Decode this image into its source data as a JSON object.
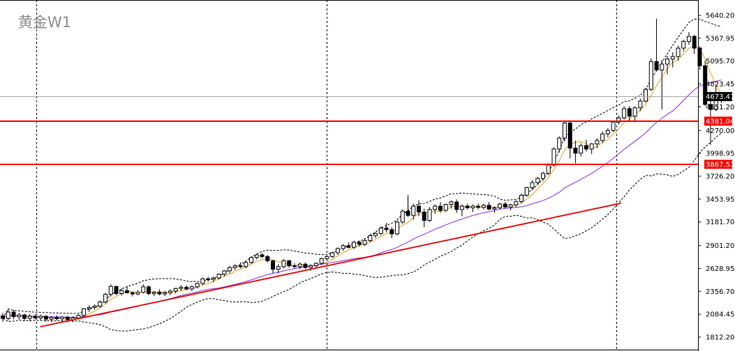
{
  "chart_data": {
    "type": "candlestick",
    "title": "黄金W1",
    "timeframe": "W1",
    "ylim": [
      1790,
      5770
    ],
    "y_ticks": [
      5640.2,
      5367.95,
      5095.7,
      4823.45,
      4551.2,
      4270.0,
      3998.95,
      3726.2,
      3453.95,
      3181.7,
      2901.2,
      2628.95,
      2356.7,
      2084.45,
      1812.2
    ],
    "current_price": {
      "label": "4673.47",
      "value": 4673.47,
      "color": "#000000",
      "text_color": "#ffffff"
    },
    "levels": [
      {
        "label": "4381.04",
        "value": 4381.04,
        "color": "#ff0000"
      },
      {
        "label": "3867.51",
        "value": 3867.51,
        "color": "#ff0000"
      }
    ],
    "period_separators": [
      52,
      468,
      883
    ],
    "grid": false,
    "candles": [
      [
        2065,
        2100,
        1995,
        2035
      ],
      [
        2035,
        2140,
        2010,
        2110
      ],
      [
        2110,
        2135,
        2025,
        2055
      ],
      [
        2055,
        2100,
        2020,
        2075
      ],
      [
        2075,
        2090,
        2010,
        2035
      ],
      [
        2035,
        2085,
        2000,
        2060
      ],
      [
        2060,
        2085,
        2020,
        2040
      ],
      [
        2040,
        2080,
        2010,
        2060
      ],
      [
        2060,
        2070,
        2000,
        2025
      ],
      [
        2025,
        2060,
        1990,
        2045
      ],
      [
        2045,
        2070,
        2010,
        2030
      ],
      [
        2030,
        2060,
        2000,
        2050
      ],
      [
        2050,
        2065,
        1985,
        2020
      ],
      [
        2020,
        2060,
        1990,
        2040
      ],
      [
        2040,
        2085,
        2030,
        2070
      ],
      [
        2070,
        2160,
        2055,
        2150
      ],
      [
        2150,
        2190,
        2110,
        2165
      ],
      [
        2165,
        2200,
        2140,
        2180
      ],
      [
        2180,
        2250,
        2160,
        2230
      ],
      [
        2230,
        2340,
        2210,
        2320
      ],
      [
        2320,
        2440,
        2295,
        2415
      ],
      [
        2415,
        2420,
        2310,
        2330
      ],
      [
        2330,
        2390,
        2305,
        2365
      ],
      [
        2365,
        2420,
        2330,
        2340
      ],
      [
        2340,
        2350,
        2295,
        2325
      ],
      [
        2325,
        2370,
        2310,
        2345
      ],
      [
        2345,
        2440,
        2330,
        2410
      ],
      [
        2410,
        2425,
        2310,
        2330
      ],
      [
        2330,
        2360,
        2300,
        2345
      ],
      [
        2345,
        2380,
        2310,
        2325
      ],
      [
        2325,
        2360,
        2300,
        2340
      ],
      [
        2340,
        2380,
        2310,
        2360
      ],
      [
        2360,
        2400,
        2330,
        2390
      ],
      [
        2390,
        2430,
        2360,
        2405
      ],
      [
        2405,
        2430,
        2370,
        2385
      ],
      [
        2385,
        2425,
        2360,
        2410
      ],
      [
        2410,
        2460,
        2390,
        2450
      ],
      [
        2450,
        2520,
        2430,
        2505
      ],
      [
        2505,
        2530,
        2470,
        2500
      ],
      [
        2500,
        2530,
        2465,
        2515
      ],
      [
        2515,
        2570,
        2495,
        2560
      ],
      [
        2560,
        2610,
        2530,
        2600
      ],
      [
        2600,
        2660,
        2570,
        2640
      ],
      [
        2640,
        2680,
        2610,
        2660
      ],
      [
        2660,
        2700,
        2630,
        2650
      ],
      [
        2650,
        2720,
        2630,
        2700
      ],
      [
        2700,
        2770,
        2680,
        2760
      ],
      [
        2760,
        2800,
        2735,
        2790
      ],
      [
        2790,
        2810,
        2750,
        2770
      ],
      [
        2770,
        2790,
        2700,
        2720
      ],
      [
        2720,
        2730,
        2570,
        2620
      ],
      [
        2620,
        2680,
        2570,
        2650
      ],
      [
        2650,
        2740,
        2630,
        2720
      ],
      [
        2720,
        2730,
        2640,
        2660
      ],
      [
        2660,
        2690,
        2630,
        2650
      ],
      [
        2650,
        2700,
        2620,
        2680
      ],
      [
        2680,
        2700,
        2620,
        2640
      ],
      [
        2640,
        2680,
        2600,
        2660
      ],
      [
        2660,
        2700,
        2640,
        2690
      ],
      [
        2690,
        2760,
        2670,
        2745
      ],
      [
        2745,
        2790,
        2720,
        2770
      ],
      [
        2770,
        2830,
        2750,
        2815
      ],
      [
        2815,
        2880,
        2790,
        2865
      ],
      [
        2865,
        2920,
        2840,
        2900
      ],
      [
        2900,
        2940,
        2865,
        2880
      ],
      [
        2880,
        2960,
        2860,
        2940
      ],
      [
        2940,
        2960,
        2890,
        2915
      ],
      [
        2915,
        2980,
        2895,
        2960
      ],
      [
        2960,
        3040,
        2940,
        3020
      ],
      [
        3020,
        3060,
        2990,
        3045
      ],
      [
        3045,
        3130,
        3025,
        3110
      ],
      [
        3110,
        3170,
        3060,
        3090
      ],
      [
        3090,
        3120,
        2990,
        3040
      ],
      [
        3040,
        3200,
        3020,
        3180
      ],
      [
        3180,
        3330,
        3160,
        3310
      ],
      [
        3310,
        3500,
        3240,
        3260
      ],
      [
        3260,
        3400,
        3210,
        3370
      ],
      [
        3370,
        3440,
        3250,
        3300
      ],
      [
        3300,
        3340,
        3120,
        3200
      ],
      [
        3200,
        3360,
        3180,
        3330
      ],
      [
        3330,
        3390,
        3280,
        3370
      ],
      [
        3370,
        3420,
        3290,
        3320
      ],
      [
        3320,
        3400,
        3300,
        3390
      ],
      [
        3390,
        3440,
        3340,
        3420
      ],
      [
        3420,
        3450,
        3290,
        3330
      ],
      [
        3330,
        3390,
        3250,
        3370
      ],
      [
        3370,
        3400,
        3330,
        3350
      ],
      [
        3350,
        3390,
        3300,
        3370
      ],
      [
        3370,
        3400,
        3330,
        3355
      ],
      [
        3355,
        3400,
        3330,
        3380
      ],
      [
        3380,
        3420,
        3320,
        3335
      ],
      [
        3335,
        3370,
        3290,
        3350
      ],
      [
        3350,
        3410,
        3330,
        3395
      ],
      [
        3395,
        3420,
        3340,
        3360
      ],
      [
        3360,
        3400,
        3320,
        3385
      ],
      [
        3385,
        3440,
        3360,
        3425
      ],
      [
        3425,
        3520,
        3400,
        3500
      ],
      [
        3500,
        3600,
        3480,
        3590
      ],
      [
        3590,
        3680,
        3560,
        3650
      ],
      [
        3650,
        3720,
        3620,
        3700
      ],
      [
        3700,
        3780,
        3670,
        3760
      ],
      [
        3760,
        3880,
        3740,
        3860
      ],
      [
        3860,
        4070,
        3840,
        4050
      ],
      [
        4050,
        4200,
        4010,
        4180
      ],
      [
        4180,
        4390,
        4140,
        4360
      ],
      [
        4360,
        4380,
        3940,
        4060
      ],
      [
        4060,
        4150,
        3880,
        4000
      ],
      [
        4000,
        4120,
        3960,
        4090
      ],
      [
        4090,
        4160,
        4020,
        4050
      ],
      [
        4050,
        4120,
        3990,
        4110
      ],
      [
        4110,
        4180,
        4060,
        4150
      ],
      [
        4150,
        4260,
        4120,
        4230
      ],
      [
        4230,
        4300,
        4190,
        4270
      ],
      [
        4270,
        4390,
        4250,
        4370
      ],
      [
        4370,
        4450,
        4340,
        4420
      ],
      [
        4420,
        4560,
        4400,
        4530
      ],
      [
        4530,
        4560,
        4380,
        4440
      ],
      [
        4440,
        4560,
        4380,
        4540
      ],
      [
        4540,
        4650,
        4500,
        4620
      ],
      [
        4620,
        4780,
        4600,
        4760
      ],
      [
        4760,
        5130,
        4740,
        5090
      ],
      [
        5090,
        5600,
        4990,
        4990
      ],
      [
        4990,
        5110,
        4520,
        5060
      ],
      [
        5060,
        5160,
        4940,
        5120
      ],
      [
        5120,
        5200,
        5020,
        5150
      ],
      [
        5150,
        5280,
        5100,
        5250
      ],
      [
        5250,
        5350,
        5210,
        5330
      ],
      [
        5330,
        5440,
        5290,
        5390
      ],
      [
        5390,
        5410,
        5180,
        5250
      ],
      [
        5250,
        5270,
        4990,
        5040
      ],
      [
        5040,
        5100,
        4560,
        4580
      ],
      [
        4580,
        4660,
        4100,
        4520
      ],
      [
        4520,
        4800,
        4500,
        4680
      ],
      [
        4680,
        4720,
        4600,
        4673
      ]
    ],
    "ma_fast": {
      "color": "#e6a01e",
      "period": 5
    },
    "ma_slow": {
      "color": "#8a2be2",
      "period": 20
    },
    "bollinger": {
      "period": 20,
      "deviation": 2,
      "color": "#000000",
      "style": "dashed"
    },
    "trendline": {
      "from": [
        1,
        1935
      ],
      "to": [
        124,
        3405
      ],
      "color": "#e01818"
    }
  }
}
